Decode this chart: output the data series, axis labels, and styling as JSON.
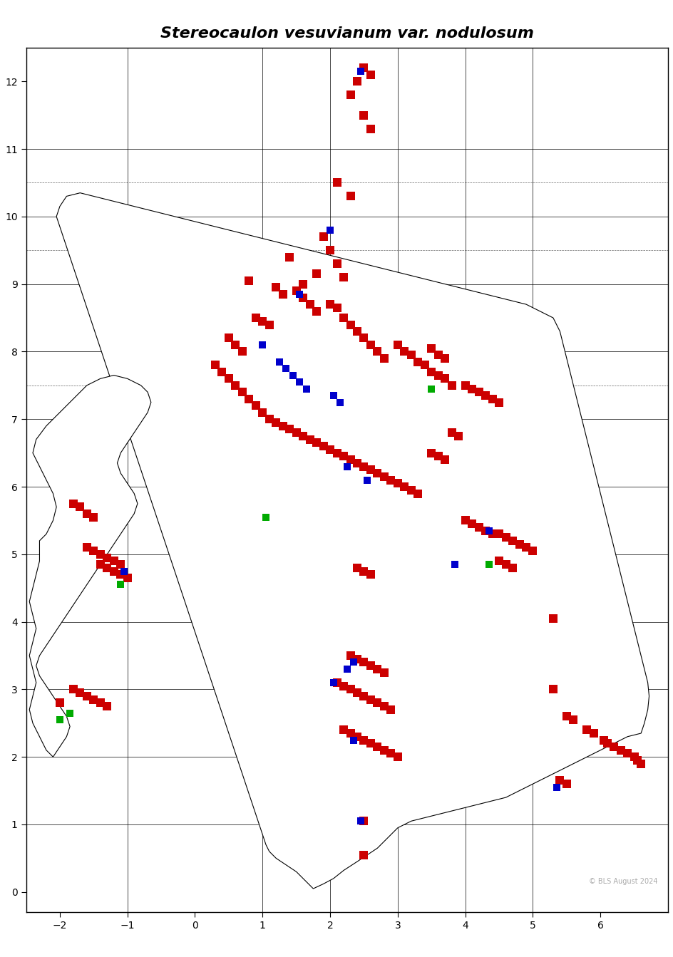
{
  "title": "Stereocaulon vesuvianum var. nodulosum",
  "title_style": "italic",
  "xlim": [
    -2.5,
    7
  ],
  "ylim": [
    -0.3,
    12.5
  ],
  "xticks": [
    -2,
    -1,
    0,
    1,
    2,
    3,
    4,
    5,
    6
  ],
  "yticks": [
    0,
    1,
    2,
    3,
    4,
    5,
    6,
    7,
    8,
    9,
    10,
    11,
    12
  ],
  "grid_color": "#000000",
  "grid_major_lines_x": [
    -1,
    1,
    2,
    3,
    4,
    5
  ],
  "grid_major_lines_y": [
    1,
    2,
    3,
    4,
    5,
    6,
    7,
    8,
    9,
    10,
    11
  ],
  "copyright_text": "© BLS August 2024",
  "copyright_color": "#aaaaaa",
  "red_color": "#cc0000",
  "blue_color": "#0000cc",
  "green_color": "#00aa00",
  "marker_size": 8,
  "red_squares": [
    [
      2.5,
      12.2
    ],
    [
      2.6,
      12.1
    ],
    [
      2.4,
      12.0
    ],
    [
      2.3,
      11.8
    ],
    [
      2.5,
      11.5
    ],
    [
      2.6,
      11.3
    ],
    [
      2.1,
      10.5
    ],
    [
      2.3,
      10.3
    ],
    [
      1.9,
      9.7
    ],
    [
      2.0,
      9.5
    ],
    [
      2.1,
      9.3
    ],
    [
      2.2,
      9.1
    ],
    [
      1.8,
      9.15
    ],
    [
      1.6,
      9.0
    ],
    [
      1.4,
      9.4
    ],
    [
      0.8,
      9.05
    ],
    [
      1.2,
      8.95
    ],
    [
      1.3,
      8.85
    ],
    [
      1.5,
      8.9
    ],
    [
      1.6,
      8.8
    ],
    [
      1.7,
      8.7
    ],
    [
      1.8,
      8.6
    ],
    [
      2.0,
      8.7
    ],
    [
      2.1,
      8.65
    ],
    [
      2.2,
      8.5
    ],
    [
      2.3,
      8.4
    ],
    [
      2.4,
      8.3
    ],
    [
      2.5,
      8.2
    ],
    [
      2.6,
      8.1
    ],
    [
      2.7,
      8.0
    ],
    [
      2.8,
      7.9
    ],
    [
      3.0,
      8.1
    ],
    [
      3.1,
      8.0
    ],
    [
      3.2,
      7.95
    ],
    [
      3.3,
      7.85
    ],
    [
      3.4,
      7.8
    ],
    [
      3.5,
      7.7
    ],
    [
      3.6,
      7.65
    ],
    [
      3.7,
      7.6
    ],
    [
      3.8,
      7.5
    ],
    [
      3.5,
      8.05
    ],
    [
      3.6,
      7.95
    ],
    [
      3.7,
      7.9
    ],
    [
      0.9,
      8.5
    ],
    [
      1.0,
      8.45
    ],
    [
      1.1,
      8.4
    ],
    [
      0.5,
      8.2
    ],
    [
      0.6,
      8.1
    ],
    [
      0.7,
      8.0
    ],
    [
      0.3,
      7.8
    ],
    [
      0.4,
      7.7
    ],
    [
      0.5,
      7.6
    ],
    [
      0.6,
      7.5
    ],
    [
      0.7,
      7.4
    ],
    [
      0.8,
      7.3
    ],
    [
      0.9,
      7.2
    ],
    [
      1.0,
      7.1
    ],
    [
      1.1,
      7.0
    ],
    [
      1.2,
      6.95
    ],
    [
      1.3,
      6.9
    ],
    [
      1.4,
      6.85
    ],
    [
      1.5,
      6.8
    ],
    [
      1.6,
      6.75
    ],
    [
      1.7,
      6.7
    ],
    [
      1.8,
      6.65
    ],
    [
      1.9,
      6.6
    ],
    [
      2.0,
      6.55
    ],
    [
      2.1,
      6.5
    ],
    [
      2.2,
      6.45
    ],
    [
      2.3,
      6.4
    ],
    [
      2.4,
      6.35
    ],
    [
      2.5,
      6.3
    ],
    [
      2.6,
      6.25
    ],
    [
      2.7,
      6.2
    ],
    [
      2.8,
      6.15
    ],
    [
      2.9,
      6.1
    ],
    [
      3.0,
      6.05
    ],
    [
      3.1,
      6.0
    ],
    [
      3.2,
      5.95
    ],
    [
      3.3,
      5.9
    ],
    [
      3.5,
      6.5
    ],
    [
      3.6,
      6.45
    ],
    [
      3.7,
      6.4
    ],
    [
      4.0,
      7.5
    ],
    [
      4.1,
      7.45
    ],
    [
      4.2,
      7.4
    ],
    [
      4.3,
      7.35
    ],
    [
      4.4,
      7.3
    ],
    [
      4.5,
      7.25
    ],
    [
      3.8,
      6.8
    ],
    [
      3.9,
      6.75
    ],
    [
      4.5,
      5.3
    ],
    [
      4.6,
      5.25
    ],
    [
      4.7,
      5.2
    ],
    [
      4.8,
      5.15
    ],
    [
      4.9,
      5.1
    ],
    [
      5.0,
      5.05
    ],
    [
      4.5,
      4.9
    ],
    [
      4.6,
      4.85
    ],
    [
      4.7,
      4.8
    ],
    [
      4.0,
      5.5
    ],
    [
      4.1,
      5.45
    ],
    [
      4.2,
      5.4
    ],
    [
      4.3,
      5.35
    ],
    [
      4.4,
      5.3
    ],
    [
      5.3,
      4.05
    ],
    [
      2.4,
      4.8
    ],
    [
      2.5,
      4.75
    ],
    [
      2.6,
      4.7
    ],
    [
      2.3,
      3.5
    ],
    [
      2.4,
      3.45
    ],
    [
      2.5,
      3.4
    ],
    [
      2.6,
      3.35
    ],
    [
      2.7,
      3.3
    ],
    [
      2.8,
      3.25
    ],
    [
      2.1,
      3.1
    ],
    [
      2.2,
      3.05
    ],
    [
      2.3,
      3.0
    ],
    [
      2.4,
      2.95
    ],
    [
      2.5,
      2.9
    ],
    [
      2.6,
      2.85
    ],
    [
      2.7,
      2.8
    ],
    [
      2.8,
      2.75
    ],
    [
      2.9,
      2.7
    ],
    [
      2.2,
      2.4
    ],
    [
      2.3,
      2.35
    ],
    [
      2.4,
      2.3
    ],
    [
      2.5,
      2.25
    ],
    [
      2.6,
      2.2
    ],
    [
      2.7,
      2.15
    ],
    [
      2.8,
      2.1
    ],
    [
      2.9,
      2.05
    ],
    [
      3.0,
      2.0
    ],
    [
      2.5,
      1.05
    ],
    [
      2.5,
      0.55
    ],
    [
      -1.8,
      3.0
    ],
    [
      -1.7,
      2.95
    ],
    [
      -1.6,
      2.9
    ],
    [
      -1.5,
      2.85
    ],
    [
      -1.4,
      2.8
    ],
    [
      -1.3,
      2.75
    ],
    [
      -1.4,
      4.85
    ],
    [
      -1.3,
      4.8
    ],
    [
      -1.2,
      4.75
    ],
    [
      -1.1,
      4.7
    ],
    [
      -1.0,
      4.65
    ],
    [
      -1.6,
      5.1
    ],
    [
      -1.5,
      5.05
    ],
    [
      -1.4,
      5.0
    ],
    [
      -1.3,
      4.95
    ],
    [
      -1.2,
      4.9
    ],
    [
      -1.1,
      4.85
    ],
    [
      -1.6,
      5.6
    ],
    [
      -1.5,
      5.55
    ],
    [
      -1.8,
      5.75
    ],
    [
      -1.7,
      5.7
    ],
    [
      -2.0,
      2.8
    ],
    [
      6.05,
      2.25
    ],
    [
      6.1,
      2.2
    ],
    [
      6.2,
      2.15
    ],
    [
      6.3,
      2.1
    ],
    [
      6.4,
      2.05
    ],
    [
      6.5,
      2.0
    ],
    [
      6.55,
      1.95
    ],
    [
      6.6,
      1.9
    ],
    [
      5.4,
      1.65
    ],
    [
      5.5,
      1.6
    ],
    [
      5.5,
      2.6
    ],
    [
      5.6,
      2.55
    ],
    [
      5.8,
      2.4
    ],
    [
      5.9,
      2.35
    ],
    [
      5.3,
      3.0
    ]
  ],
  "blue_squares": [
    [
      2.45,
      12.15
    ],
    [
      2.0,
      9.8
    ],
    [
      1.55,
      8.85
    ],
    [
      1.0,
      8.1
    ],
    [
      1.25,
      7.85
    ],
    [
      1.35,
      7.75
    ],
    [
      1.45,
      7.65
    ],
    [
      1.55,
      7.55
    ],
    [
      1.65,
      7.45
    ],
    [
      2.05,
      7.35
    ],
    [
      2.15,
      7.25
    ],
    [
      2.25,
      6.3
    ],
    [
      2.55,
      6.1
    ],
    [
      3.85,
      4.85
    ],
    [
      4.35,
      5.35
    ],
    [
      2.35,
      3.4
    ],
    [
      2.25,
      3.3
    ],
    [
      2.05,
      3.1
    ],
    [
      2.35,
      2.25
    ],
    [
      2.45,
      1.05
    ],
    [
      -1.05,
      4.75
    ],
    [
      1.05,
      5.55
    ],
    [
      5.35,
      1.55
    ]
  ],
  "green_squares": [
    [
      3.5,
      7.45
    ],
    [
      4.35,
      4.85
    ],
    [
      -1.1,
      4.55
    ],
    [
      1.05,
      5.55
    ],
    [
      -2.0,
      2.55
    ],
    [
      -1.85,
      2.65
    ]
  ],
  "background_color": "#ffffff",
  "spine_color": "#000000"
}
